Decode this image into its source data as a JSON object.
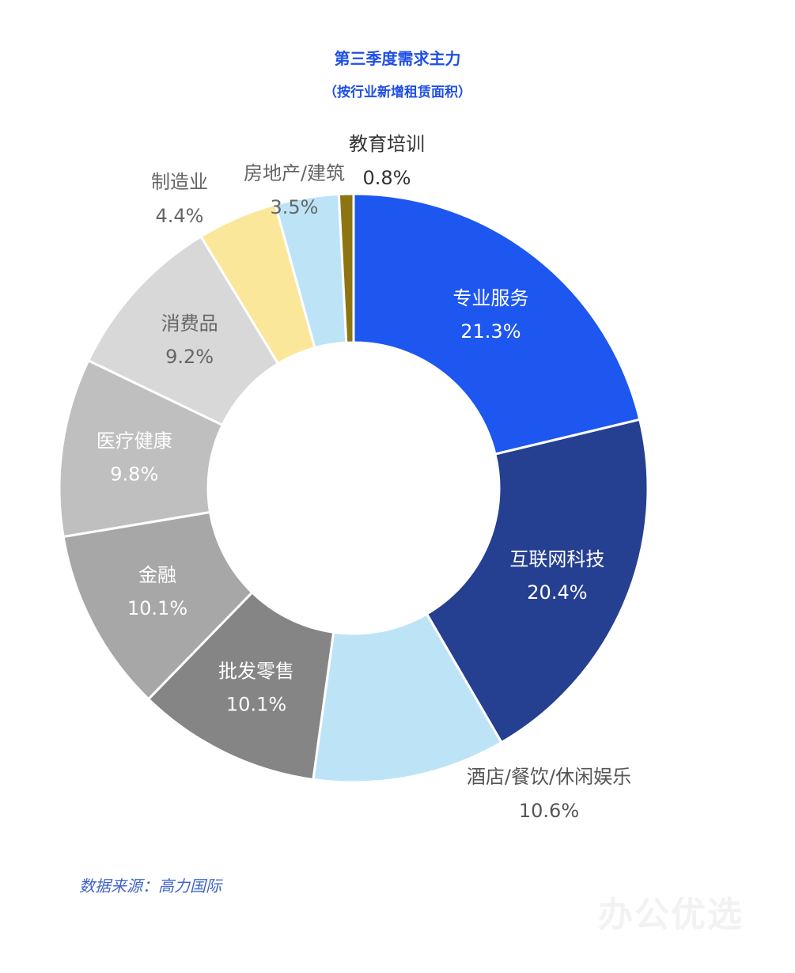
{
  "title": "第三季度需求主力",
  "subtitle": "（按行业新增租赁面积）",
  "source": "数据来源：高力国际",
  "watermark": "办公优选",
  "chart_data": {
    "type": "pie",
    "donut": true,
    "title": "第三季度需求主力",
    "subtitle": "（按行业新增租赁面积）",
    "unit": "%",
    "slices": [
      {
        "name": "专业服务",
        "value": 21.3,
        "value_label": "21.3%",
        "color": "#1e56f0",
        "label_color": "#ffffff",
        "label_placement": "inside"
      },
      {
        "name": "互联网科技",
        "value": 20.4,
        "value_label": "20.4%",
        "color": "#253f91",
        "label_color": "#ffffff",
        "label_placement": "inside"
      },
      {
        "name": "酒店/餐饮/休闲娱乐",
        "value": 10.6,
        "value_label": "10.6%",
        "color": "#bde4f6",
        "label_color": "#555555",
        "label_placement": "outside"
      },
      {
        "name": "批发零售",
        "value": 10.1,
        "value_label": "10.1%",
        "color": "#858585",
        "label_color": "#ffffff",
        "label_placement": "inside"
      },
      {
        "name": "金融",
        "value": 10.1,
        "value_label": "10.1%",
        "color": "#a7a7a7",
        "label_color": "#ffffff",
        "label_placement": "inside"
      },
      {
        "name": "医疗健康",
        "value": 9.8,
        "value_label": "9.8%",
        "color": "#bfbfbf",
        "label_color": "#ffffff",
        "label_placement": "inside"
      },
      {
        "name": "消费品",
        "value": 9.2,
        "value_label": "9.2%",
        "color": "#d8d8d8",
        "label_color": "#666666",
        "label_placement": "inside"
      },
      {
        "name": "制造业",
        "value": 4.4,
        "value_label": "4.4%",
        "color": "#fbe79a",
        "label_color": "#666666",
        "label_placement": "outside"
      },
      {
        "name": "房地产/建筑",
        "value": 3.5,
        "value_label": "3.5%",
        "color": "#bde4f6",
        "label_color": "#666666",
        "label_placement": "outside"
      },
      {
        "name": "教育培训",
        "value": 0.8,
        "value_label": "0.8%",
        "color": "#8c7512",
        "label_color": "#333333",
        "label_placement": "outside"
      }
    ]
  }
}
